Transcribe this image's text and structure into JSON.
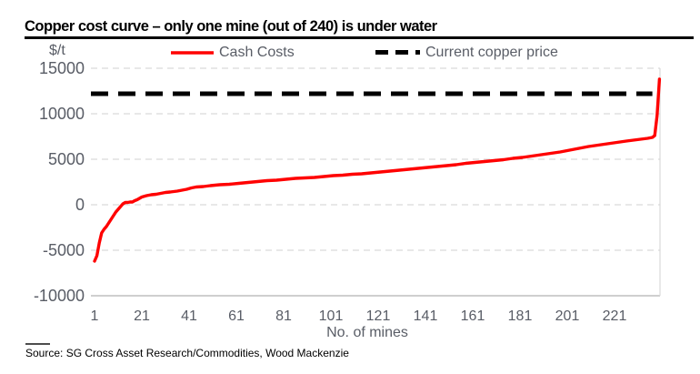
{
  "header": {
    "title": "Copper cost curve – only one mine (out of 240) is under water"
  },
  "footer": {
    "source_label": "Source: SG Cross Asset Research/Commodities, Wood Mackenzie"
  },
  "colors": {
    "cash_costs_red": "#ff0000",
    "copper_price_black": "#000000",
    "axis_text": "#595d66",
    "gridline": "#d9d9d9",
    "axis_line": "#bfbfbf"
  },
  "chart_data": {
    "type": "line",
    "title": "Copper cost curve – only one mine (out of 240) is under water",
    "xlabel": "No. of mines",
    "ylabel": "$/t",
    "xlim": [
      1,
      240
    ],
    "ylim": [
      -10000,
      15000
    ],
    "x_ticks": [
      1,
      21,
      41,
      61,
      81,
      101,
      121,
      141,
      161,
      181,
      201,
      221
    ],
    "y_ticks": [
      15000,
      10000,
      5000,
      0,
      -5000,
      -10000
    ],
    "grid": "horizontal dashed gridlines, solid baseline at -10000, solid right border",
    "legend_position": "top",
    "series": [
      {
        "name": "Cash Costs",
        "style": "solid",
        "color": "#ff0000",
        "points": [
          [
            1,
            -6200
          ],
          [
            2,
            -5600
          ],
          [
            3,
            -4200
          ],
          [
            4,
            -3100
          ],
          [
            5,
            -2700
          ],
          [
            6,
            -2400
          ],
          [
            7,
            -2000
          ],
          [
            8,
            -1600
          ],
          [
            9,
            -1200
          ],
          [
            10,
            -800
          ],
          [
            11,
            -500
          ],
          [
            12,
            -200
          ],
          [
            13,
            100
          ],
          [
            14,
            250
          ],
          [
            15,
            250
          ],
          [
            16,
            300
          ],
          [
            17,
            300
          ],
          [
            18,
            450
          ],
          [
            19,
            550
          ],
          [
            20,
            700
          ],
          [
            21,
            850
          ],
          [
            23,
            1000
          ],
          [
            25,
            1100
          ],
          [
            27,
            1150
          ],
          [
            29,
            1250
          ],
          [
            31,
            1350
          ],
          [
            33,
            1400
          ],
          [
            36,
            1500
          ],
          [
            38,
            1600
          ],
          [
            40,
            1700
          ],
          [
            42,
            1850
          ],
          [
            44,
            1950
          ],
          [
            47,
            2000
          ],
          [
            50,
            2100
          ],
          [
            54,
            2200
          ],
          [
            58,
            2250
          ],
          [
            62,
            2350
          ],
          [
            66,
            2450
          ],
          [
            70,
            2550
          ],
          [
            74,
            2650
          ],
          [
            78,
            2700
          ],
          [
            82,
            2800
          ],
          [
            86,
            2900
          ],
          [
            90,
            2950
          ],
          [
            94,
            3000
          ],
          [
            98,
            3100
          ],
          [
            102,
            3200
          ],
          [
            106,
            3250
          ],
          [
            110,
            3350
          ],
          [
            114,
            3400
          ],
          [
            118,
            3500
          ],
          [
            122,
            3600
          ],
          [
            126,
            3700
          ],
          [
            130,
            3800
          ],
          [
            134,
            3900
          ],
          [
            138,
            4000
          ],
          [
            142,
            4100
          ],
          [
            146,
            4200
          ],
          [
            150,
            4300
          ],
          [
            154,
            4400
          ],
          [
            158,
            4550
          ],
          [
            162,
            4650
          ],
          [
            166,
            4750
          ],
          [
            170,
            4850
          ],
          [
            174,
            4950
          ],
          [
            178,
            5100
          ],
          [
            182,
            5200
          ],
          [
            186,
            5350
          ],
          [
            190,
            5500
          ],
          [
            194,
            5650
          ],
          [
            198,
            5800
          ],
          [
            202,
            6000
          ],
          [
            206,
            6200
          ],
          [
            210,
            6400
          ],
          [
            214,
            6550
          ],
          [
            218,
            6700
          ],
          [
            222,
            6850
          ],
          [
            226,
            7000
          ],
          [
            229,
            7100
          ],
          [
            232,
            7200
          ],
          [
            235,
            7300
          ],
          [
            237,
            7400
          ],
          [
            238,
            7600
          ],
          [
            239,
            9800
          ],
          [
            240,
            13800
          ]
        ]
      },
      {
        "name": "Current copper price",
        "style": "dashed",
        "color": "#000000",
        "value": 12200,
        "points": [
          [
            1,
            12200
          ],
          [
            237,
            12200
          ]
        ]
      }
    ]
  }
}
